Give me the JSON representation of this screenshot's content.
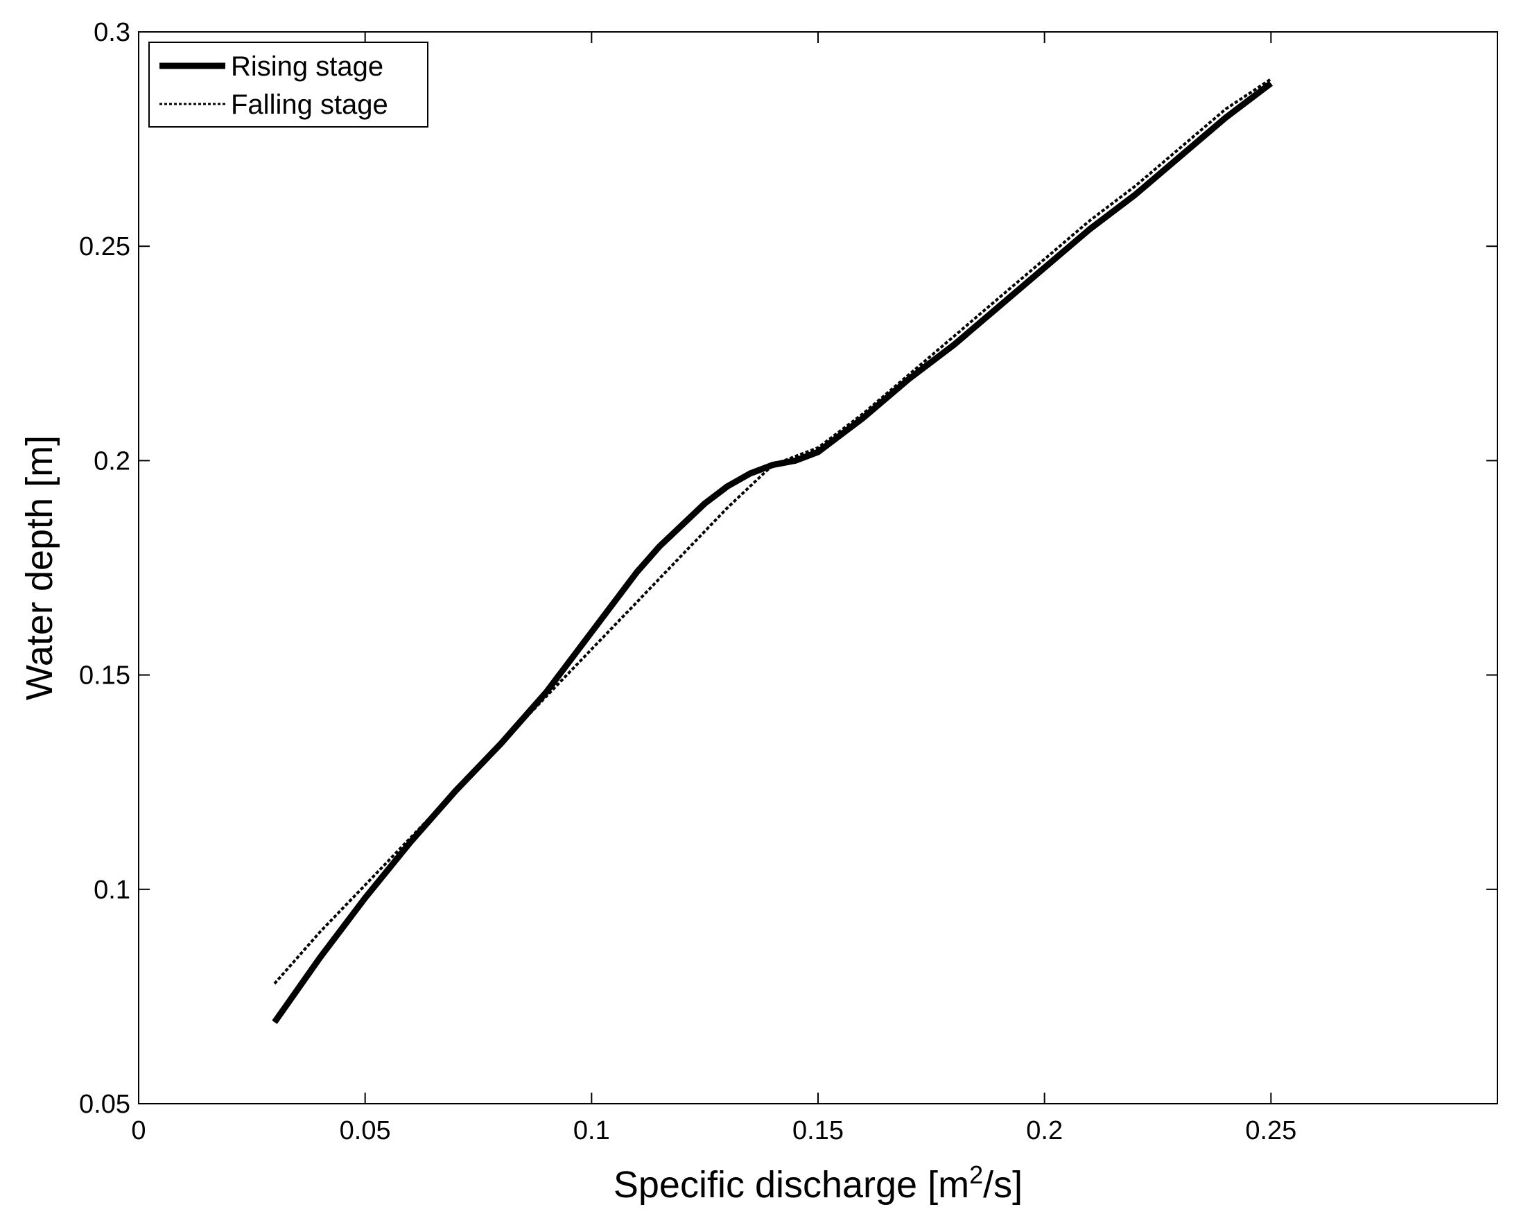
{
  "chart_data": {
    "type": "line",
    "xlabel": "Specific discharge [m",
    "xlabel_sup": "2",
    "xlabel_tail": "/s]",
    "ylabel": "Water depth [m]",
    "xlim": [
      0,
      0.3
    ],
    "ylim": [
      0.05,
      0.3
    ],
    "xticks": [
      0,
      0.05,
      0.1,
      0.15,
      0.2,
      0.25
    ],
    "xtick_labels": [
      "0",
      "0.05",
      "0.1",
      "0.15",
      "0.2",
      "0.25"
    ],
    "yticks": [
      0.05,
      0.1,
      0.15,
      0.2,
      0.25,
      0.3
    ],
    "ytick_labels": [
      "0.05",
      "0.1",
      "0.15",
      "0.2",
      "0.25",
      "0.3"
    ],
    "grid": false,
    "legend_position": "top-left",
    "series": [
      {
        "name": "Rising stage",
        "style": "solid-thick",
        "color": "#000000",
        "x": [
          0.03,
          0.04,
          0.05,
          0.06,
          0.07,
          0.08,
          0.09,
          0.1,
          0.11,
          0.115,
          0.12,
          0.125,
          0.13,
          0.135,
          0.14,
          0.145,
          0.15,
          0.16,
          0.17,
          0.18,
          0.19,
          0.2,
          0.21,
          0.22,
          0.23,
          0.24,
          0.25
        ],
        "y": [
          0.069,
          0.084,
          0.098,
          0.111,
          0.123,
          0.134,
          0.146,
          0.16,
          0.174,
          0.18,
          0.185,
          0.19,
          0.194,
          0.197,
          0.199,
          0.2,
          0.202,
          0.21,
          0.219,
          0.227,
          0.236,
          0.245,
          0.254,
          0.262,
          0.271,
          0.28,
          0.288
        ]
      },
      {
        "name": "Falling stage",
        "style": "dotted-thin",
        "color": "#000000",
        "x": [
          0.03,
          0.04,
          0.05,
          0.06,
          0.07,
          0.08,
          0.09,
          0.1,
          0.11,
          0.12,
          0.13,
          0.14,
          0.15,
          0.16,
          0.17,
          0.18,
          0.19,
          0.2,
          0.21,
          0.22,
          0.23,
          0.24,
          0.25
        ],
        "y": [
          0.078,
          0.09,
          0.101,
          0.112,
          0.123,
          0.134,
          0.145,
          0.156,
          0.167,
          0.178,
          0.189,
          0.199,
          0.203,
          0.211,
          0.22,
          0.229,
          0.238,
          0.247,
          0.256,
          0.264,
          0.273,
          0.282,
          0.289
        ]
      }
    ]
  }
}
